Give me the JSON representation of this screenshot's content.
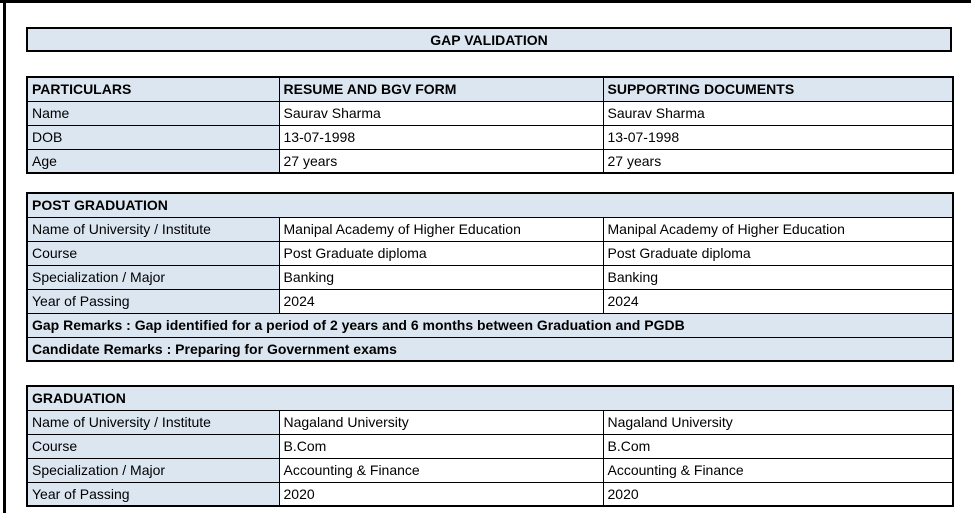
{
  "page": {
    "title": "GAP VALIDATION"
  },
  "colors": {
    "header_fill": "#DCE6F1",
    "border": "#000000",
    "text": "#000000",
    "background": "#FFFFFF"
  },
  "particulars_table": {
    "headers": [
      "PARTICULARS",
      "RESUME AND BGV FORM",
      "SUPPORTING DOCUMENTS"
    ],
    "rows": [
      {
        "label": "Name",
        "resume": "Saurav Sharma",
        "supporting": "Saurav Sharma"
      },
      {
        "label": "DOB",
        "resume": "13-07-1998",
        "supporting": "13-07-1998"
      },
      {
        "label": "Age",
        "resume": "27 years",
        "supporting": "27 years"
      }
    ]
  },
  "post_graduation_table": {
    "section_title": "POST GRADUATION",
    "rows": [
      {
        "label": "Name of University / Institute",
        "resume": "Manipal Academy of Higher Education",
        "supporting": "Manipal Academy of Higher Education"
      },
      {
        "label": "Course",
        "resume": "Post Graduate diploma",
        "supporting": "Post Graduate diploma"
      },
      {
        "label": "Specialization / Major",
        "resume": "Banking",
        "supporting": "Banking"
      },
      {
        "label": "Year of Passing",
        "resume": "2024",
        "supporting": "2024"
      }
    ],
    "gap_remarks": "Gap Remarks : Gap identified for a period of 2 years and 6 months between Graduation and PGDB",
    "candidate_remarks": "Candidate Remarks : Preparing for Government exams"
  },
  "graduation_table": {
    "section_title": "GRADUATION",
    "rows": [
      {
        "label": "Name of University / Institute",
        "resume": "Nagaland University",
        "supporting": "Nagaland University"
      },
      {
        "label": "Course",
        "resume": "B.Com",
        "supporting": "B.Com"
      },
      {
        "label": "Specialization / Major",
        "resume": "Accounting & Finance",
        "supporting": "Accounting & Finance"
      },
      {
        "label": "Year of Passing",
        "resume": "2020",
        "supporting": "2020"
      }
    ]
  }
}
